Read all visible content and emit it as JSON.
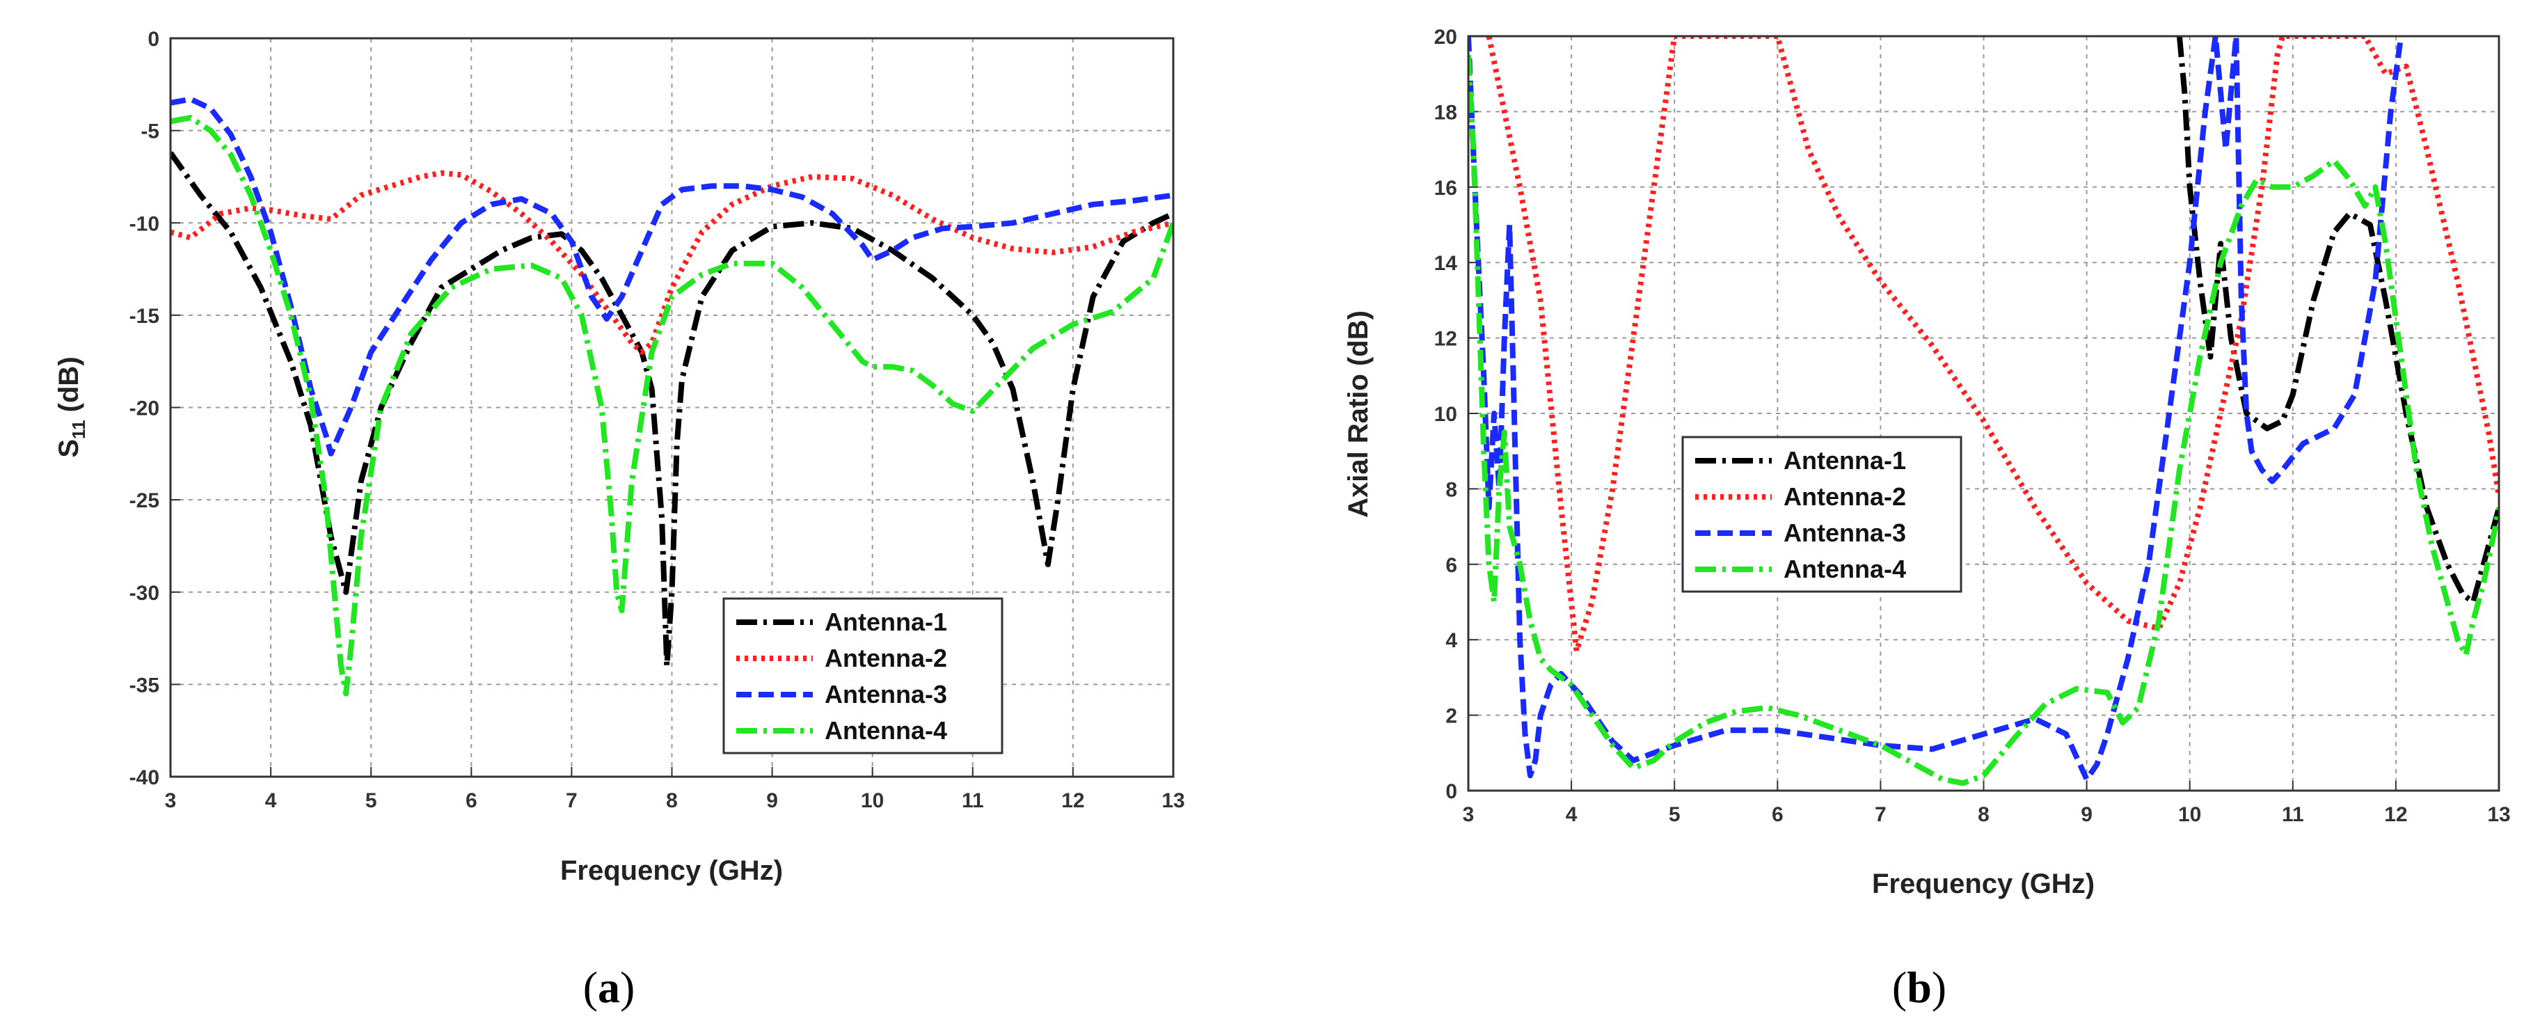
{
  "chart_data": [
    {
      "type": "line",
      "caption": "a",
      "title": "",
      "xlabel": "Frequency (GHz)",
      "ylabel_main": "S",
      "ylabel_sub": "11",
      "ylabel_tail": " (dB)",
      "xlim": [
        3,
        13
      ],
      "ylim": [
        -40,
        0
      ],
      "xticks": [
        3,
        4,
        5,
        6,
        7,
        8,
        9,
        10,
        11,
        12,
        13
      ],
      "yticks": [
        -40,
        -35,
        -30,
        -25,
        -20,
        -15,
        -10,
        -5,
        0
      ],
      "grid": true,
      "legend_position": "bottom-right",
      "series": [
        {
          "name": "Antenna-1",
          "color": "#000000",
          "dash": "dashdot",
          "x": [
            3.0,
            3.3,
            3.6,
            3.9,
            4.2,
            4.4,
            4.6,
            4.75,
            4.9,
            5.1,
            5.4,
            5.7,
            6.0,
            6.3,
            6.6,
            6.9,
            7.1,
            7.3,
            7.5,
            7.7,
            7.8,
            7.9,
            7.95,
            8.0,
            8.05,
            8.1,
            8.3,
            8.6,
            9.0,
            9.4,
            9.8,
            10.2,
            10.6,
            11.0,
            11.2,
            11.4,
            11.6,
            11.75,
            11.85,
            12.0,
            12.2,
            12.5,
            12.8,
            13.0
          ],
          "y": [
            -6.2,
            -8.5,
            -10.5,
            -13.5,
            -17.5,
            -21,
            -27,
            -30,
            -24,
            -20,
            -16.5,
            -13.5,
            -12.5,
            -11.5,
            -10.8,
            -10.6,
            -11.5,
            -13,
            -15,
            -17,
            -19,
            -26,
            -34,
            -30,
            -22,
            -18.5,
            -14,
            -11.5,
            -10.2,
            -10,
            -10.3,
            -11.5,
            -13,
            -15,
            -16.5,
            -19,
            -24,
            -28.5,
            -25,
            -19,
            -14,
            -11,
            -10,
            -9.5
          ]
        },
        {
          "name": "Antenna-2",
          "color": "#ff2020",
          "dash": "dot",
          "x": [
            3.0,
            3.2,
            3.5,
            3.8,
            4.0,
            4.3,
            4.6,
            4.9,
            5.2,
            5.5,
            5.7,
            5.9,
            6.2,
            6.5,
            6.8,
            7.1,
            7.4,
            7.6,
            7.7,
            7.8,
            8.0,
            8.3,
            8.6,
            9.0,
            9.4,
            9.8,
            10.2,
            10.6,
            11.0,
            11.4,
            11.8,
            12.2,
            12.6,
            13.0
          ],
          "y": [
            -10.5,
            -10.8,
            -9.5,
            -9.2,
            -9.3,
            -9.6,
            -9.8,
            -8.5,
            -8,
            -7.5,
            -7.3,
            -7.4,
            -8.3,
            -9.5,
            -11,
            -12.8,
            -15,
            -16.5,
            -17,
            -16.5,
            -13.5,
            -10.5,
            -9,
            -8,
            -7.5,
            -7.6,
            -8.5,
            -9.8,
            -10.8,
            -11.4,
            -11.6,
            -11.3,
            -10.5,
            -10
          ]
        },
        {
          "name": "Antenna-3",
          "color": "#1a2bff",
          "dash": "dash",
          "x": [
            3.0,
            3.2,
            3.4,
            3.6,
            3.8,
            4.0,
            4.2,
            4.4,
            4.55,
            4.6,
            4.8,
            5.0,
            5.3,
            5.6,
            5.9,
            6.2,
            6.5,
            6.8,
            7.0,
            7.2,
            7.35,
            7.5,
            7.7,
            7.9,
            8.1,
            8.4,
            8.7,
            9.0,
            9.3,
            9.6,
            9.9,
            10.0,
            10.2,
            10.4,
            10.7,
            11.0,
            11.4,
            11.8,
            12.2,
            12.6,
            13.0
          ],
          "y": [
            -3.5,
            -3.3,
            -3.8,
            -5.2,
            -7.5,
            -10.5,
            -14.5,
            -19,
            -21.5,
            -22.5,
            -20,
            -17,
            -14.5,
            -12,
            -10,
            -9,
            -8.7,
            -9.5,
            -11,
            -14,
            -15.2,
            -14,
            -11.5,
            -9,
            -8.2,
            -8,
            -8,
            -8.2,
            -8.6,
            -9.5,
            -11.2,
            -12,
            -11.5,
            -10.8,
            -10.3,
            -10.2,
            -10,
            -9.5,
            -9,
            -8.8,
            -8.5
          ]
        },
        {
          "name": "Antenna-4",
          "color": "#22e622",
          "dash": "dashdot",
          "x": [
            3.0,
            3.2,
            3.4,
            3.6,
            3.8,
            4.0,
            4.2,
            4.4,
            4.55,
            4.65,
            4.7,
            4.75,
            4.8,
            4.9,
            5.1,
            5.4,
            5.8,
            6.2,
            6.6,
            6.9,
            7.1,
            7.3,
            7.4,
            7.45,
            7.5,
            7.6,
            7.8,
            8.0,
            8.3,
            8.6,
            9.0,
            9.3,
            9.6,
            9.9,
            10.0,
            10.2,
            10.4,
            10.6,
            10.8,
            11.0,
            11.3,
            11.6,
            12.0,
            12.4,
            12.8,
            13.0
          ],
          "y": [
            -4.5,
            -4.3,
            -5,
            -6.3,
            -8.5,
            -11.5,
            -15,
            -19.5,
            -25,
            -31,
            -34,
            -35.5,
            -33,
            -27,
            -20,
            -16,
            -13.5,
            -12.5,
            -12.3,
            -13,
            -15,
            -20,
            -26,
            -30,
            -31,
            -24,
            -17,
            -14,
            -12.8,
            -12.2,
            -12.2,
            -13.5,
            -15.5,
            -17.5,
            -17.8,
            -17.8,
            -18,
            -18.8,
            -19.8,
            -20.2,
            -18.5,
            -16.8,
            -15.5,
            -14.8,
            -13,
            -10
          ]
        }
      ]
    },
    {
      "type": "line",
      "caption": "b",
      "title": "",
      "xlabel": "Frequency (GHz)",
      "ylabel": "Axial Ratio (dB)",
      "xlim": [
        3,
        13
      ],
      "ylim": [
        0,
        20
      ],
      "xticks": [
        3,
        4,
        5,
        6,
        7,
        8,
        9,
        10,
        11,
        12,
        13
      ],
      "yticks": [
        0,
        2,
        4,
        6,
        8,
        10,
        12,
        14,
        16,
        18,
        20
      ],
      "grid": true,
      "legend_position": "center-left",
      "series": [
        {
          "name": "Antenna-1",
          "color": "#000000",
          "dash": "dashdot",
          "x": [
            9.9,
            9.95,
            10.0,
            10.1,
            10.2,
            10.3,
            10.4,
            10.55,
            10.75,
            10.9,
            11.0,
            11.2,
            11.4,
            11.55,
            11.75,
            11.9,
            12.1,
            12.3,
            12.5,
            12.65,
            12.75,
            12.9,
            13.0
          ],
          "y": [
            20,
            18.5,
            16,
            13.5,
            11.5,
            14.5,
            12,
            10,
            9.6,
            9.8,
            10.5,
            13,
            14.8,
            15.3,
            15,
            13,
            10,
            7.5,
            6,
            5.2,
            5,
            6.5,
            7.5
          ]
        },
        {
          "name": "Antenna-2",
          "color": "#ff2020",
          "dash": "dot",
          "x": [
            3.2,
            3.35,
            3.5,
            3.7,
            3.9,
            4.05,
            4.2,
            4.4,
            4.6,
            4.8,
            4.95,
            5.0,
            6.0,
            6.3,
            6.6,
            7.0,
            7.5,
            8.0,
            8.5,
            9.0,
            9.4,
            9.7,
            9.9,
            10.1,
            10.3,
            10.5,
            10.7,
            10.85,
            10.9,
            11.7,
            11.9,
            12.1,
            12.3,
            12.6,
            12.9,
            13.0
          ],
          "y": [
            20,
            18,
            16,
            13,
            7.5,
            3.7,
            5,
            8,
            12,
            16,
            19,
            20,
            20,
            17,
            15.2,
            13.5,
            11.8,
            9.8,
            7.5,
            5.5,
            4.5,
            4.3,
            5.5,
            7.5,
            10,
            12.5,
            16,
            19.5,
            20,
            20,
            19,
            19.2,
            17,
            13.5,
            9.5,
            7.8
          ]
        },
        {
          "name": "Antenna-3",
          "color": "#1a2bff",
          "dash": "dash",
          "x": [
            3.0,
            3.08,
            3.15,
            3.2,
            3.25,
            3.3,
            3.35,
            3.4,
            3.45,
            3.5,
            3.55,
            3.6,
            3.65,
            3.7,
            3.8,
            3.9,
            4.1,
            4.4,
            4.6,
            5.0,
            5.5,
            6.0,
            6.5,
            7.0,
            7.5,
            8.0,
            8.5,
            8.8,
            9.0,
            9.1,
            9.2,
            9.4,
            9.6,
            9.8,
            10.0,
            10.15,
            10.25,
            10.35,
            10.45,
            10.5,
            10.55,
            10.6,
            10.7,
            10.8,
            10.9,
            11.1,
            11.4,
            11.6,
            11.8,
            11.95,
            12.05
          ],
          "y": [
            20,
            15,
            11,
            7.5,
            10,
            8,
            12,
            15,
            9.5,
            4,
            1.5,
            0.4,
            0.8,
            2,
            2.8,
            3.1,
            2.5,
            1.3,
            0.8,
            1.2,
            1.6,
            1.6,
            1.4,
            1.2,
            1.1,
            1.5,
            1.9,
            1.5,
            0.3,
            0.7,
            1.5,
            3.5,
            6,
            10,
            14,
            18,
            20,
            17,
            20,
            13,
            10,
            9,
            8.5,
            8.2,
            8.5,
            9.2,
            9.6,
            10.5,
            13.5,
            18,
            20
          ]
        },
        {
          "name": "Antenna-4",
          "color": "#22e622",
          "dash": "dashdot",
          "x": [
            3.0,
            3.05,
            3.1,
            3.15,
            3.2,
            3.25,
            3.3,
            3.35,
            3.4,
            3.5,
            3.6,
            3.7,
            3.8,
            4.0,
            4.2,
            4.4,
            4.6,
            4.8,
            5.0,
            5.3,
            5.6,
            5.9,
            6.2,
            6.6,
            7.0,
            7.4,
            7.6,
            7.8,
            8.0,
            8.3,
            8.6,
            8.9,
            9.2,
            9.35,
            9.5,
            9.7,
            9.9,
            10.1,
            10.3,
            10.5,
            10.65,
            10.8,
            11.0,
            11.2,
            11.4,
            11.55,
            11.7,
            11.8,
            11.9,
            12.05,
            12.2,
            12.35,
            12.5,
            12.6,
            12.68,
            12.75,
            12.85,
            12.95,
            13.0
          ],
          "y": [
            19.5,
            17,
            13,
            9,
            6,
            5,
            8,
            9.5,
            7,
            6,
            4.5,
            3.5,
            3.2,
            2.8,
            2,
            1.2,
            0.6,
            0.8,
            1.3,
            1.8,
            2.1,
            2.2,
            2,
            1.6,
            1.2,
            0.6,
            0.3,
            0.2,
            0.4,
            1.4,
            2.3,
            2.7,
            2.6,
            1.8,
            2.2,
            4.5,
            8.5,
            11.5,
            14,
            15.5,
            16.2,
            16,
            16,
            16.3,
            16.7,
            16.2,
            15.5,
            16,
            14.5,
            11.5,
            8.5,
            6.5,
            5,
            4,
            3.6,
            4.5,
            5.5,
            6.8,
            7.5
          ]
        }
      ]
    }
  ]
}
